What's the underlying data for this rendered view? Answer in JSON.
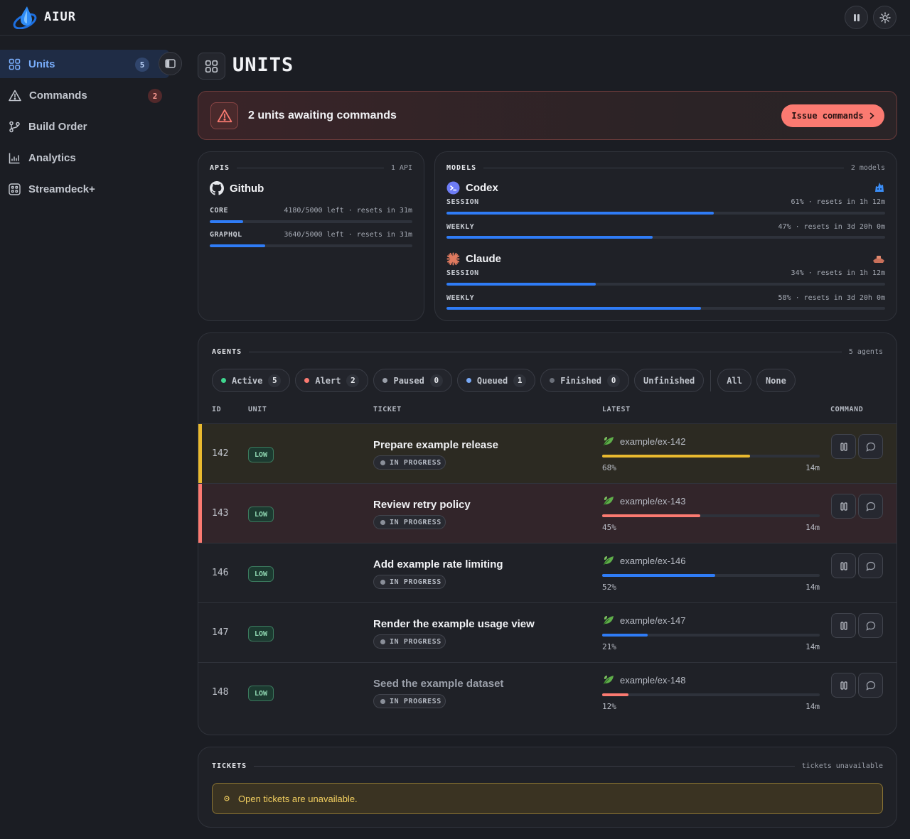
{
  "app": {
    "name": "AIUR"
  },
  "sidebar": {
    "items": [
      {
        "label": "Units",
        "badge": "5",
        "icon": "grid-icon",
        "active": true
      },
      {
        "label": "Commands",
        "badge": "2",
        "icon": "warning-icon"
      },
      {
        "label": "Build Order",
        "icon": "branch-icon"
      },
      {
        "label": "Analytics",
        "icon": "bar-chart-icon"
      },
      {
        "label": "Streamdeck+",
        "icon": "keypad-icon"
      }
    ]
  },
  "page": {
    "title": "UNITS"
  },
  "alert": {
    "text": "2 units awaiting commands",
    "button": "Issue commands"
  },
  "apis": {
    "label": "APIS",
    "count": "1 API",
    "service": "Github",
    "meters": [
      {
        "key": "CORE",
        "value": "4180/5000 left · resets in 31m",
        "used": 0.164
      },
      {
        "key": "GRAPHQL",
        "value": "3640/5000 left · resets in 31m",
        "used": 0.272
      }
    ]
  },
  "models": {
    "label": "MODELS",
    "count": "2 models",
    "items": [
      {
        "name": "Codex",
        "meters": [
          {
            "key": "SESSION",
            "value": "61% · resets in 1h 12m",
            "used": 0.61
          },
          {
            "key": "WEEKLY",
            "value": "47% · resets in 3d 20h 0m",
            "used": 0.47
          }
        ]
      },
      {
        "name": "Claude",
        "meters": [
          {
            "key": "SESSION",
            "value": "34% · resets in 1h 12m",
            "used": 0.34
          },
          {
            "key": "WEEKLY",
            "value": "58% · resets in 3d 20h 0m",
            "used": 0.58
          }
        ]
      }
    ]
  },
  "agents": {
    "label": "AGENTS",
    "count": "5 agents",
    "filters": [
      {
        "label": "Active",
        "count": "5",
        "color": "#3fd68f"
      },
      {
        "label": "Alert",
        "count": "2",
        "color": "#fb7a71"
      },
      {
        "label": "Paused",
        "count": "0",
        "color": "#9ba0aa"
      },
      {
        "label": "Queued",
        "count": "1",
        "color": "#78a8f5"
      },
      {
        "label": "Finished",
        "count": "0",
        "color": "#6b707a"
      },
      {
        "label": "Unfinished"
      },
      {
        "label": "All"
      },
      {
        "label": "None"
      }
    ],
    "columns": [
      "ID",
      "UNIT",
      "TICKET",
      "LATEST",
      "COMMAND"
    ],
    "rows": [
      {
        "id": "142",
        "unit": "LOW",
        "ticket": "Prepare example release",
        "status": "IN PROGRESS",
        "branch": "example/ex-142",
        "progress": 0.68,
        "pct": "68%",
        "age": "14m",
        "color": "#e9b92f",
        "bg": "#2c2a22",
        "accent": "#e9b92f"
      },
      {
        "id": "143",
        "unit": "LOW",
        "ticket": "Review retry policy",
        "status": "IN PROGRESS",
        "branch": "example/ex-143",
        "progress": 0.45,
        "pct": "45%",
        "age": "14m",
        "color": "#fb7a71",
        "bg": "#32252a",
        "accent": "#fb7a71"
      },
      {
        "id": "146",
        "unit": "LOW",
        "ticket": "Add example rate limiting",
        "status": "IN PROGRESS",
        "branch": "example/ex-146",
        "progress": 0.52,
        "pct": "52%",
        "age": "14m",
        "color": "#2f7cf6",
        "bg": "#1f2127",
        "accent": ""
      },
      {
        "id": "147",
        "unit": "LOW",
        "ticket": "Render the example usage view",
        "status": "IN PROGRESS",
        "branch": "example/ex-147",
        "progress": 0.21,
        "pct": "21%",
        "age": "14m",
        "color": "#2f7cf6",
        "bg": "#1f2127",
        "accent": ""
      },
      {
        "id": "148",
        "unit": "LOW",
        "ticket": "Seed the example dataset",
        "status": "IN PROGRESS",
        "branch": "example/ex-148",
        "progress": 0.12,
        "pct": "12%",
        "age": "14m",
        "color": "#fb7a71",
        "bg": "#1f2127",
        "accent": "",
        "dim": true
      }
    ]
  },
  "tickets": {
    "label": "TICKETS",
    "count": "tickets unavailable",
    "warning": "Open tickets are unavailable."
  }
}
